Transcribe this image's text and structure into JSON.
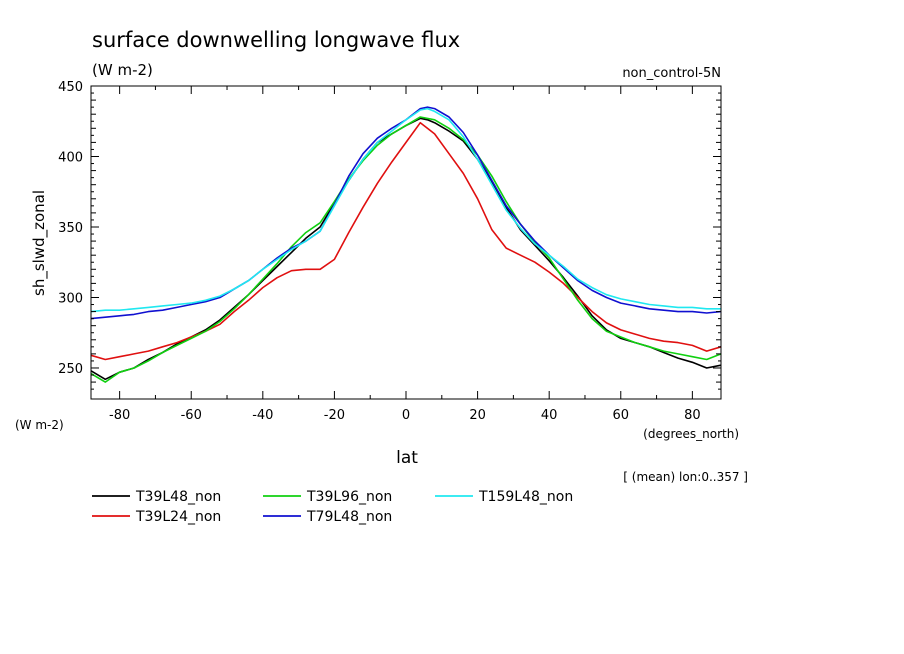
{
  "chart_data": {
    "type": "line",
    "title": "surface downwelling longwave flux",
    "units_label": "(W m-2)",
    "subtitle_right": "non_control-5N",
    "ylabel": "sh_slwd_zonal",
    "ylabel_units": "(W m-2)",
    "xlabel": "lat",
    "xlabel_units": "(degrees_north)",
    "note": "[ (mean) lon:0..357 ]",
    "xlim": [
      -88,
      88
    ],
    "ylim": [
      228,
      450
    ],
    "x_ticks": [
      "-80",
      "-60",
      "-40",
      "-20",
      "0",
      "20",
      "40",
      "60",
      "80"
    ],
    "y_ticks": [
      "250",
      "300",
      "350",
      "400",
      "450"
    ],
    "series": [
      {
        "name": "T39L48_non",
        "color": "#000000",
        "x": [
          -88,
          -84,
          -80,
          -76,
          -72,
          -68,
          -64,
          -60,
          -56,
          -52,
          -48,
          -44,
          -40,
          -36,
          -32,
          -28,
          -24,
          -20,
          -16,
          -12,
          -8,
          -4,
          0,
          4,
          6,
          8,
          12,
          16,
          20,
          24,
          28,
          32,
          36,
          40,
          44,
          48,
          52,
          56,
          60,
          64,
          68,
          72,
          76,
          80,
          84,
          88
        ],
        "y": [
          248,
          242,
          247,
          250,
          256,
          261,
          267,
          272,
          277,
          284,
          293,
          302,
          312,
          322,
          332,
          342,
          350,
          367,
          383,
          398,
          410,
          416,
          422,
          427,
          426,
          424,
          418,
          411,
          398,
          382,
          364,
          348,
          337,
          326,
          314,
          301,
          287,
          277,
          271,
          268,
          265,
          261,
          257,
          254,
          250,
          252
        ]
      },
      {
        "name": "T39L24_non",
        "color": "#e01010",
        "x": [
          -88,
          -84,
          -80,
          -76,
          -72,
          -68,
          -64,
          -60,
          -56,
          -52,
          -48,
          -44,
          -40,
          -36,
          -32,
          -28,
          -24,
          -20,
          -16,
          -12,
          -8,
          -4,
          0,
          4,
          8,
          12,
          16,
          20,
          24,
          28,
          32,
          36,
          40,
          44,
          48,
          52,
          56,
          60,
          64,
          68,
          72,
          76,
          80,
          84,
          88
        ],
        "y": [
          259,
          256,
          258,
          260,
          262,
          265,
          268,
          272,
          276,
          281,
          290,
          298,
          307,
          314,
          319,
          320,
          320,
          327,
          346,
          364,
          381,
          396,
          410,
          424,
          416,
          402,
          388,
          370,
          348,
          335,
          330,
          325,
          318,
          310,
          300,
          290,
          282,
          277,
          274,
          271,
          269,
          268,
          266,
          262,
          265
        ]
      },
      {
        "name": "T39L96_non",
        "color": "#10d010",
        "x": [
          -88,
          -84,
          -80,
          -76,
          -72,
          -68,
          -64,
          -60,
          -56,
          -52,
          -48,
          -44,
          -40,
          -36,
          -32,
          -28,
          -24,
          -20,
          -16,
          -12,
          -8,
          -4,
          0,
          4,
          8,
          12,
          16,
          20,
          24,
          28,
          32,
          36,
          40,
          44,
          48,
          52,
          56,
          60,
          64,
          68,
          72,
          76,
          80,
          84,
          88
        ],
        "y": [
          246,
          240,
          247,
          250,
          255,
          261,
          266,
          271,
          276,
          283,
          292,
          302,
          313,
          324,
          336,
          346,
          353,
          368,
          384,
          397,
          408,
          416,
          422,
          428,
          426,
          420,
          412,
          401,
          386,
          368,
          352,
          339,
          328,
          313,
          298,
          285,
          276,
          272,
          268,
          265,
          262,
          260,
          258,
          256,
          260
        ]
      },
      {
        "name": "T79L48_non",
        "color": "#1010d0",
        "x": [
          -88,
          -84,
          -80,
          -76,
          -72,
          -68,
          -64,
          -60,
          -56,
          -52,
          -48,
          -44,
          -40,
          -36,
          -32,
          -28,
          -24,
          -20,
          -16,
          -12,
          -8,
          -4,
          0,
          4,
          6,
          8,
          12,
          16,
          20,
          24,
          28,
          32,
          36,
          40,
          44,
          48,
          52,
          56,
          60,
          64,
          68,
          72,
          76,
          80,
          84,
          88
        ],
        "y": [
          285,
          286,
          287,
          288,
          290,
          291,
          293,
          295,
          297,
          300,
          306,
          312,
          320,
          328,
          335,
          340,
          347,
          366,
          386,
          402,
          413,
          420,
          426,
          434,
          435,
          434,
          428,
          417,
          401,
          383,
          365,
          352,
          340,
          330,
          321,
          312,
          305,
          300,
          296,
          294,
          292,
          291,
          290,
          290,
          289,
          290
        ]
      },
      {
        "name": "T159L48_non",
        "color": "#20e8f0",
        "x": [
          -88,
          -84,
          -80,
          -76,
          -72,
          -68,
          -64,
          -60,
          -56,
          -52,
          -48,
          -44,
          -40,
          -36,
          -32,
          -28,
          -24,
          -20,
          -16,
          -12,
          -8,
          -4,
          0,
          4,
          6,
          8,
          12,
          16,
          20,
          24,
          28,
          32,
          36,
          40,
          44,
          48,
          52,
          56,
          60,
          64,
          68,
          72,
          76,
          80,
          84,
          88
        ],
        "y": [
          290,
          291,
          291,
          292,
          293,
          294,
          295,
          296,
          298,
          301,
          306,
          312,
          320,
          327,
          334,
          340,
          347,
          365,
          383,
          398,
          410,
          418,
          426,
          433,
          434,
          432,
          426,
          414,
          398,
          380,
          362,
          349,
          338,
          330,
          322,
          313,
          307,
          302,
          299,
          297,
          295,
          294,
          293,
          293,
          292,
          292
        ]
      }
    ],
    "legend_placement": "bottom-left",
    "grid": false
  }
}
